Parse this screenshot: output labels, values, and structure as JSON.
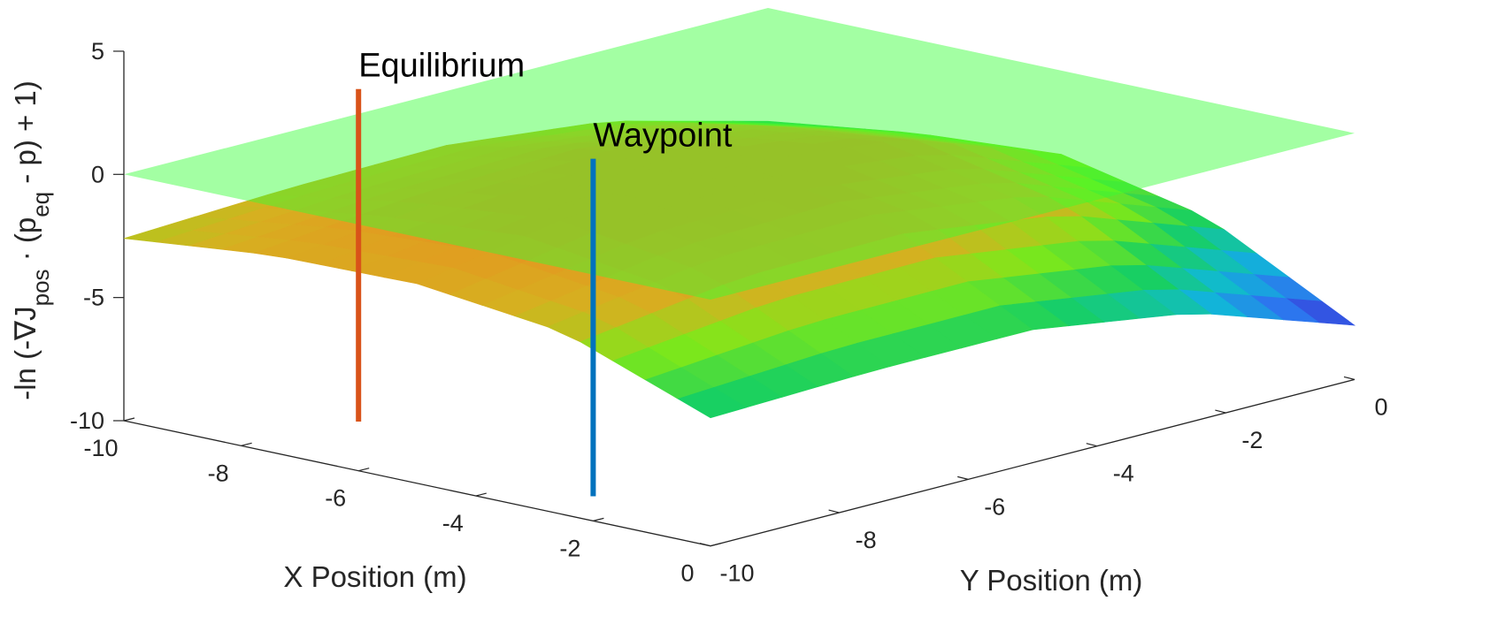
{
  "chart_data": {
    "type": "surface3d",
    "title": "",
    "xlabel": "X Position (m)",
    "ylabel": "Y Position (m)",
    "zlabel_parts": {
      "base1": "-ln (-∇J",
      "sub1": "pos",
      "base2": " · (p",
      "sub2": "eq",
      "base3": " - p) + 1)"
    },
    "xlim": [
      -10,
      0
    ],
    "ylim": [
      -10,
      0
    ],
    "zlim": [
      -10,
      5
    ],
    "x_ticks": [
      -10,
      -8,
      -6,
      -4,
      -2,
      0
    ],
    "x_tick_labels": [
      "-10",
      "-8",
      "-6",
      "-4",
      "-2",
      "0"
    ],
    "y_ticks": [
      -10,
      -8,
      -6,
      -4,
      -2,
      0
    ],
    "y_tick_labels": [
      "-10",
      "-8",
      "-6",
      "-4",
      "-2",
      "0"
    ],
    "z_ticks": [
      -10,
      -5,
      0,
      5
    ],
    "z_tick_labels": [
      "-10",
      "-5",
      "0",
      "5"
    ],
    "surface": {
      "description_values": "z = -ln(-gradJ·(p_eq - p) + 1) sampled over the grid",
      "x": [
        -10,
        -7.5,
        -5,
        -2.5,
        0
      ],
      "y": [
        -10,
        -7.5,
        -5,
        -2.5,
        0
      ],
      "z": [
        [
          -2.6,
          -2.3,
          -2.2,
          -2.9,
          -4.6
        ],
        [
          -2.0,
          -1.3,
          -1.1,
          -1.8,
          -3.8
        ],
        [
          -1.9,
          -0.7,
          -0.4,
          -1.1,
          -3.4
        ],
        [
          -2.6,
          -1.6,
          -1.5,
          -2.4,
          -4.7
        ],
        [
          -4.8,
          -4.6,
          -4.6,
          -5.6,
          -7.8
        ]
      ],
      "colormap": [
        "#3a1fc4",
        "#2f6ff0",
        "#10b8d8",
        "#18d060",
        "#7ee81a",
        "#d6b020",
        "#e89020"
      ],
      "clim": [
        -8,
        -1
      ]
    },
    "plane": {
      "z": 0,
      "color": "#33ff33",
      "opacity": 0.45
    },
    "markers": [
      {
        "label": "Equilibrium",
        "x": -6,
        "y": -10,
        "z_range": [
          -8,
          5.5
        ],
        "color": "#d95319"
      },
      {
        "label": "Waypoint",
        "x": -2,
        "y": -10,
        "z_range": [
          -9,
          4.7
        ],
        "color": "#0072bd"
      }
    ],
    "grid": false,
    "legend": "none"
  }
}
